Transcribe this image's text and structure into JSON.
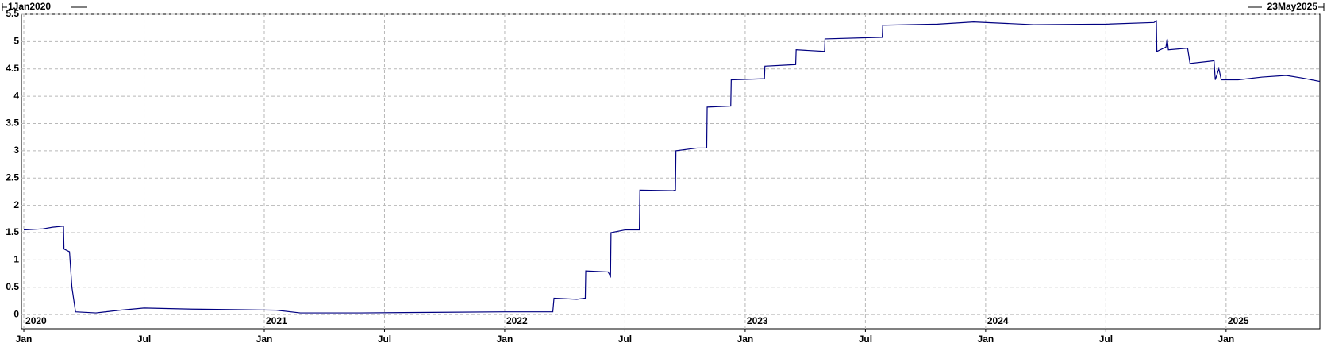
{
  "chart_data": {
    "type": "line",
    "start_label": "1Jan2020",
    "end_label": "23May2025",
    "x": [
      2020.0,
      2020.08,
      2020.12,
      2020.165,
      2020.167,
      2020.19,
      2020.2,
      2020.215,
      2020.3,
      2020.4,
      2020.5,
      2020.7,
      2020.9,
      2021.05,
      2021.15,
      2021.4,
      2021.7,
      2022.0,
      2022.2,
      2022.205,
      2022.3,
      2022.335,
      2022.337,
      2022.43,
      2022.44,
      2022.442,
      2022.5,
      2022.56,
      2022.562,
      2022.7,
      2022.71,
      2022.712,
      2022.8,
      2022.84,
      2022.842,
      2022.94,
      2022.942,
      2023.08,
      2023.082,
      2023.21,
      2023.212,
      2023.33,
      2023.332,
      2023.57,
      2023.572,
      2023.8,
      2023.95,
      2024.2,
      2024.5,
      2024.7,
      2024.71,
      2024.712,
      2024.75,
      2024.755,
      2024.76,
      2024.84,
      2024.85,
      2024.95,
      2024.955,
      2024.97,
      2024.98,
      2025.05,
      2025.15,
      2025.25,
      2025.32,
      2025.39
    ],
    "values": [
      1.55,
      1.57,
      1.6,
      1.62,
      1.2,
      1.15,
      0.5,
      0.05,
      0.03,
      0.08,
      0.12,
      0.1,
      0.09,
      0.08,
      0.03,
      0.03,
      0.04,
      0.05,
      0.05,
      0.3,
      0.28,
      0.3,
      0.8,
      0.78,
      0.7,
      1.5,
      1.55,
      1.55,
      2.28,
      2.27,
      2.28,
      3.0,
      3.05,
      3.05,
      3.8,
      3.82,
      4.3,
      4.32,
      4.55,
      4.58,
      4.85,
      4.82,
      5.05,
      5.08,
      5.3,
      5.32,
      5.36,
      5.31,
      5.32,
      5.35,
      5.38,
      4.82,
      4.9,
      5.05,
      4.85,
      4.88,
      4.6,
      4.65,
      4.3,
      4.5,
      4.3,
      4.3,
      4.35,
      4.38,
      4.33,
      4.27
    ],
    "color": "#000080",
    "xlim": [
      2019.99,
      2025.39
    ],
    "xticks": [
      {
        "value": 2020.0,
        "label": "Jan"
      },
      {
        "value": 2020.5,
        "label": "Jul"
      },
      {
        "value": 2021.0,
        "label": "Jan"
      },
      {
        "value": 2021.5,
        "label": "Jul"
      },
      {
        "value": 2022.0,
        "label": "Jan"
      },
      {
        "value": 2022.5,
        "label": "Jul"
      },
      {
        "value": 2023.0,
        "label": "Jan"
      },
      {
        "value": 2023.5,
        "label": "Jul"
      },
      {
        "value": 2024.0,
        "label": "Jan"
      },
      {
        "value": 2024.5,
        "label": "Jul"
      },
      {
        "value": 2025.0,
        "label": "Jan"
      }
    ],
    "year_ticks": [
      {
        "value": 2020.0,
        "label": "2020"
      },
      {
        "value": 2021.0,
        "label": "2021"
      },
      {
        "value": 2022.0,
        "label": "2022"
      },
      {
        "value": 2023.0,
        "label": "2023"
      },
      {
        "value": 2024.0,
        "label": "2024"
      },
      {
        "value": 2025.0,
        "label": "2025"
      }
    ],
    "ylim": [
      -0.26,
      5.5
    ],
    "yticks": [
      0,
      0.5,
      1,
      1.5,
      2,
      2.5,
      3,
      3.5,
      4,
      4.5,
      5,
      5.5
    ],
    "grid": true
  }
}
